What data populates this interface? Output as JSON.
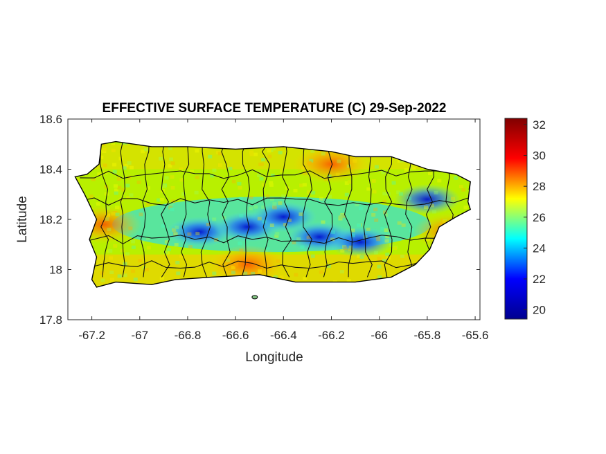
{
  "chart_data": {
    "type": "heatmap",
    "title": "EFFECTIVE SURFACE TEMPERATURE (C) 29-Sep-2022",
    "xlabel": "Longitude",
    "ylabel": "Latitude",
    "xlim": [
      -67.3,
      -65.58
    ],
    "ylim": [
      17.8,
      18.6
    ],
    "xticks": [
      -67.2,
      -67,
      -66.8,
      -66.6,
      -66.4,
      -66.2,
      -66,
      -65.8,
      -65.6
    ],
    "xtick_labels": [
      "-67.2",
      "-67",
      "-66.8",
      "-66.6",
      "-66.4",
      "-66.2",
      "-66",
      "-65.8",
      "-65.6"
    ],
    "yticks": [
      17.8,
      18,
      18.2,
      18.4,
      18.6
    ],
    "ytick_labels": [
      "17.8",
      "18",
      "18.2",
      "18.4",
      "18.6"
    ],
    "colorbar": {
      "range": [
        19.4,
        32.4
      ],
      "ticks": [
        20,
        22,
        24,
        26,
        28,
        30,
        32
      ],
      "tick_labels": [
        "20",
        "22",
        "24",
        "26",
        "28",
        "30",
        "32"
      ],
      "colormap": "jet",
      "colors": [
        "#00008f",
        "#0000ff",
        "#00ffff",
        "#ffff00",
        "#ff0000",
        "#800000"
      ]
    },
    "outline": [
      [
        -67.27,
        18.37
      ],
      [
        -67.22,
        18.38
      ],
      [
        -67.17,
        18.42
      ],
      [
        -67.16,
        18.5
      ],
      [
        -67.1,
        18.51
      ],
      [
        -66.95,
        18.49
      ],
      [
        -66.8,
        18.49
      ],
      [
        -66.6,
        18.48
      ],
      [
        -66.4,
        18.49
      ],
      [
        -66.2,
        18.47
      ],
      [
        -66.1,
        18.45
      ],
      [
        -65.95,
        18.45
      ],
      [
        -65.8,
        18.4
      ],
      [
        -65.68,
        18.38
      ],
      [
        -65.62,
        18.35
      ],
      [
        -65.63,
        18.27
      ],
      [
        -65.62,
        18.24
      ],
      [
        -65.68,
        18.21
      ],
      [
        -65.75,
        18.17
      ],
      [
        -65.79,
        18.08
      ],
      [
        -65.85,
        18.02
      ],
      [
        -65.95,
        17.97
      ],
      [
        -66.1,
        17.95
      ],
      [
        -66.2,
        17.95
      ],
      [
        -66.35,
        17.95
      ],
      [
        -66.5,
        17.98
      ],
      [
        -66.7,
        17.97
      ],
      [
        -66.85,
        17.96
      ],
      [
        -66.95,
        17.94
      ],
      [
        -67.1,
        17.95
      ],
      [
        -67.18,
        17.93
      ],
      [
        -67.2,
        17.96
      ],
      [
        -67.18,
        18.05
      ],
      [
        -67.21,
        18.12
      ],
      [
        -67.18,
        18.2
      ],
      [
        -67.23,
        18.3
      ]
    ],
    "cold_spots": [
      {
        "lon": -66.75,
        "lat": 18.15,
        "value": 20.5
      },
      {
        "lon": -66.55,
        "lat": 18.17,
        "value": 20.8
      },
      {
        "lon": -66.4,
        "lat": 18.21,
        "value": 21.0
      },
      {
        "lon": -66.25,
        "lat": 18.13,
        "value": 22.0
      },
      {
        "lon": -66.08,
        "lat": 18.11,
        "value": 21.5
      },
      {
        "lon": -65.8,
        "lat": 18.28,
        "value": 22.0
      }
    ],
    "warm_spots": [
      {
        "lon": -66.55,
        "lat": 18.02,
        "value": 30.0
      },
      {
        "lon": -66.2,
        "lat": 18.42,
        "value": 29.5
      },
      {
        "lon": -67.15,
        "lat": 18.18,
        "value": 29.0
      },
      {
        "lon": -65.7,
        "lat": 18.15,
        "value": 29.0
      }
    ]
  }
}
